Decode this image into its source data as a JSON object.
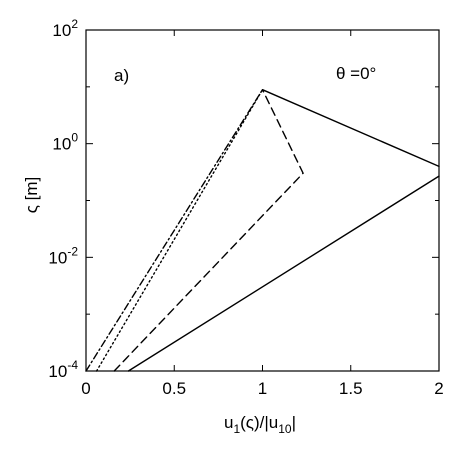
{
  "chart_data": {
    "type": "line",
    "x_scale": "linear",
    "y_scale": "log",
    "xlim": [
      0,
      2
    ],
    "ylim_log10": [
      -4,
      2
    ],
    "xticks": [
      "0",
      "0.5",
      "1",
      "1.5",
      "2"
    ],
    "xtick_values": [
      0,
      0.5,
      1,
      1.5,
      2
    ],
    "yticks": [
      {
        "base": "10",
        "exp": "2",
        "log10": 2
      },
      {
        "base": "10",
        "exp": "0",
        "log10": 0
      },
      {
        "base": "10",
        "exp": "-2",
        "log10": -2
      },
      {
        "base": "10",
        "exp": "-4",
        "log10": -4
      }
    ],
    "xlabel": {
      "main": "u",
      "sub1": "1",
      "mid": "(ς)/|u",
      "sub2": "10",
      "end": "|"
    },
    "ylabel": "ς [m]",
    "panel_label": "a)",
    "annotation": "θ =0°",
    "grid": false,
    "series": [
      {
        "style": "solid",
        "x": [
          0.24,
          2.0
        ],
        "log10_y": [
          -4,
          -0.57
        ]
      },
      {
        "style": "solid",
        "x": [
          1.0,
          2.0
        ],
        "log10_y": [
          0.95,
          -0.4
        ]
      },
      {
        "style": "dashed",
        "x": [
          0.16,
          1.23,
          1.0
        ],
        "log10_y": [
          -4,
          -0.52,
          0.95
        ]
      },
      {
        "style": "dotted",
        "x": [
          0.06,
          1.0
        ],
        "log10_y": [
          -4,
          0.95
        ]
      },
      {
        "style": "dashdot",
        "x": [
          0.0,
          1.0
        ],
        "log10_y": [
          -4,
          0.95
        ]
      }
    ]
  }
}
